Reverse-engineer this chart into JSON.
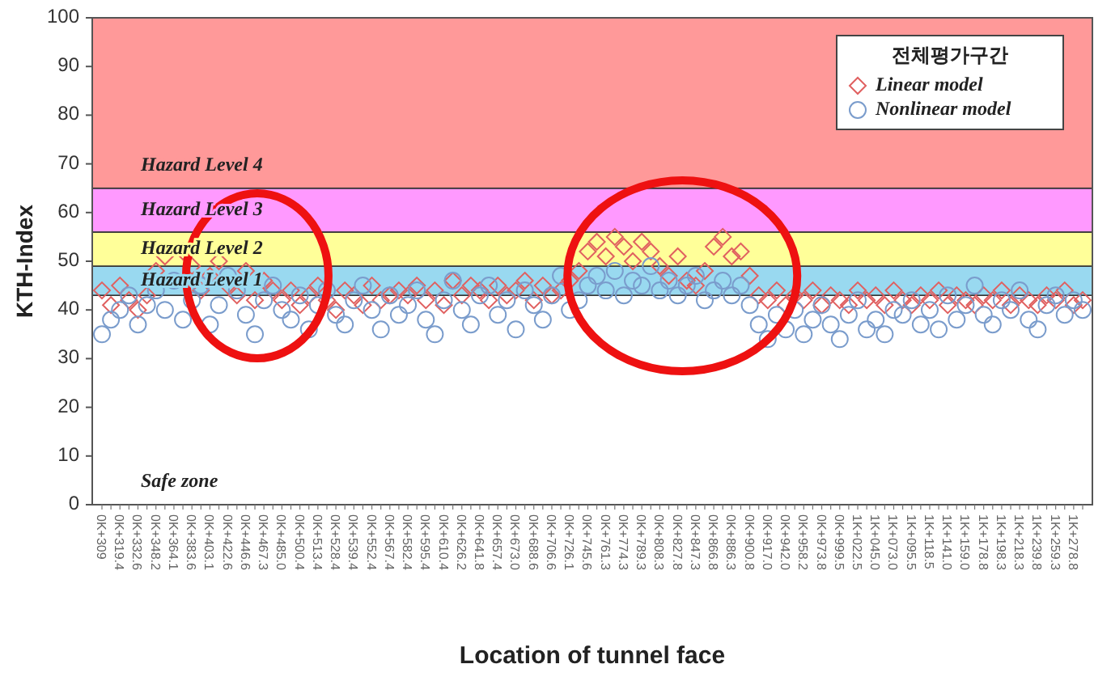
{
  "chart_data": {
    "type": "scatter",
    "xlabel": "Location of tunnel face",
    "ylabel": "KTH-Index",
    "legend_title": "전체평가구간",
    "legend": "top right",
    "categories": [
      "0K+309",
      null,
      "0K+319.4",
      null,
      "0K+332.6",
      null,
      "0K+348.2",
      null,
      "0K+364.1",
      null,
      "0K+383.6",
      null,
      "0K+403.1",
      null,
      "0K+422.6",
      null,
      "0K+446.6",
      null,
      "0K+467.3",
      null,
      "0K+485.0",
      null,
      "0K+500.4",
      null,
      "0K+513.4",
      null,
      "0K+528.4",
      null,
      "0K+539.4",
      null,
      "0K+552.4",
      null,
      "0K+567.4",
      null,
      "0K+582.4",
      null,
      "0K+595.4",
      null,
      "0K+610.4",
      null,
      "0K+626.2",
      null,
      "0K+641.8",
      null,
      "0K+657.4",
      null,
      "0K+673.0",
      null,
      "0K+688.6",
      null,
      "0K+706.6",
      null,
      "0K+726.1",
      null,
      "0K+745.6",
      null,
      "0K+761.3",
      null,
      "0K+774.3",
      null,
      "0K+789.3",
      null,
      "0K+808.3",
      null,
      "0K+827.8",
      null,
      "0K+847.3",
      null,
      "0K+866.8",
      null,
      "0K+886.3",
      null,
      "0K+900.8",
      null,
      "0K+917.0",
      null,
      "0K+942.0",
      null,
      "0K+958.2",
      null,
      "0K+973.8",
      null,
      "0K+999.5",
      null,
      "1K+022.5",
      null,
      "1K+045.0",
      null,
      "1K+073.0",
      null,
      "1K+095.5",
      null,
      "1K+118.5",
      null,
      "1K+141.0",
      null,
      "1K+159.0",
      null,
      "1K+178.8",
      null,
      "1K+198.3",
      null,
      "1K+218.3",
      null,
      "1K+239.8",
      null,
      "1K+259.3",
      null,
      "1K+278.8",
      null
    ],
    "ylim": [
      0,
      100
    ],
    "yticks": [
      0,
      10,
      20,
      30,
      40,
      50,
      60,
      70,
      80,
      90,
      100
    ],
    "series": [
      {
        "name": "*Linear model*",
        "color": "#e06060",
        "marker": "diamond",
        "values": [
          44,
          41,
          45,
          42,
          40,
          43,
          48,
          51,
          null,
          52,
          49,
          44,
          47,
          50,
          45,
          43,
          48,
          42,
          46,
          44,
          42,
          44,
          41,
          43,
          45,
          42,
          40,
          44,
          43,
          41,
          45,
          42,
          43,
          44,
          43,
          45,
          42,
          44,
          41,
          46,
          43,
          45,
          44,
          42,
          45,
          43,
          44,
          46,
          42,
          45,
          43,
          44,
          46,
          48,
          52,
          54,
          51,
          55,
          53,
          50,
          54,
          52,
          49,
          47,
          51,
          46,
          45,
          48,
          53,
          55,
          51,
          52,
          47,
          43,
          42,
          44,
          41,
          43,
          42,
          44,
          41,
          43,
          42,
          41,
          44,
          42,
          43,
          41,
          44,
          42,
          41,
          43,
          42,
          44,
          41,
          43,
          42,
          41,
          43,
          42,
          44,
          41,
          43,
          42,
          41,
          43,
          42,
          44,
          41,
          42
        ]
      },
      {
        "name": "*Nonlinear model*",
        "color": "#7a9ccc",
        "marker": "circle",
        "values": [
          35,
          38,
          40,
          43,
          37,
          41,
          44,
          40,
          46,
          38,
          42,
          45,
          37,
          41,
          47,
          44,
          39,
          35,
          42,
          45,
          40,
          38,
          43,
          36,
          41,
          44,
          39,
          37,
          42,
          45,
          40,
          36,
          43,
          39,
          41,
          44,
          38,
          35,
          42,
          46,
          40,
          37,
          43,
          45,
          39,
          42,
          36,
          44,
          41,
          38,
          43,
          47,
          40,
          42,
          45,
          47,
          44,
          48,
          43,
          46,
          45,
          49,
          44,
          46,
          43,
          45,
          47,
          42,
          44,
          46,
          43,
          45,
          41,
          37,
          34,
          39,
          36,
          40,
          35,
          38,
          41,
          37,
          34,
          39,
          42,
          36,
          38,
          35,
          40,
          39,
          42,
          37,
          40,
          36,
          43,
          38,
          41,
          45,
          39,
          37,
          42,
          40,
          44,
          38,
          36,
          41,
          43,
          39,
          42,
          40
        ]
      }
    ],
    "bands": [
      {
        "axis": "y",
        "from": 0,
        "to": 43,
        "label": "*Safe zone*",
        "color": "#ffffff"
      },
      {
        "axis": "y",
        "from": 43,
        "to": 49,
        "label": "*Hazard Level 1*",
        "color": "#99d9f0"
      },
      {
        "axis": "y",
        "from": 49,
        "to": 56,
        "label": "*Hazard Level 2*",
        "color": "#ffff99"
      },
      {
        "axis": "y",
        "from": 56,
        "to": 65,
        "label": "*Hazard Level 3*",
        "color": "#ff99ff"
      },
      {
        "axis": "y",
        "from": 65,
        "to": 100,
        "label": "*Hazard Level 4*",
        "color": "#ff9999"
      }
    ]
  }
}
